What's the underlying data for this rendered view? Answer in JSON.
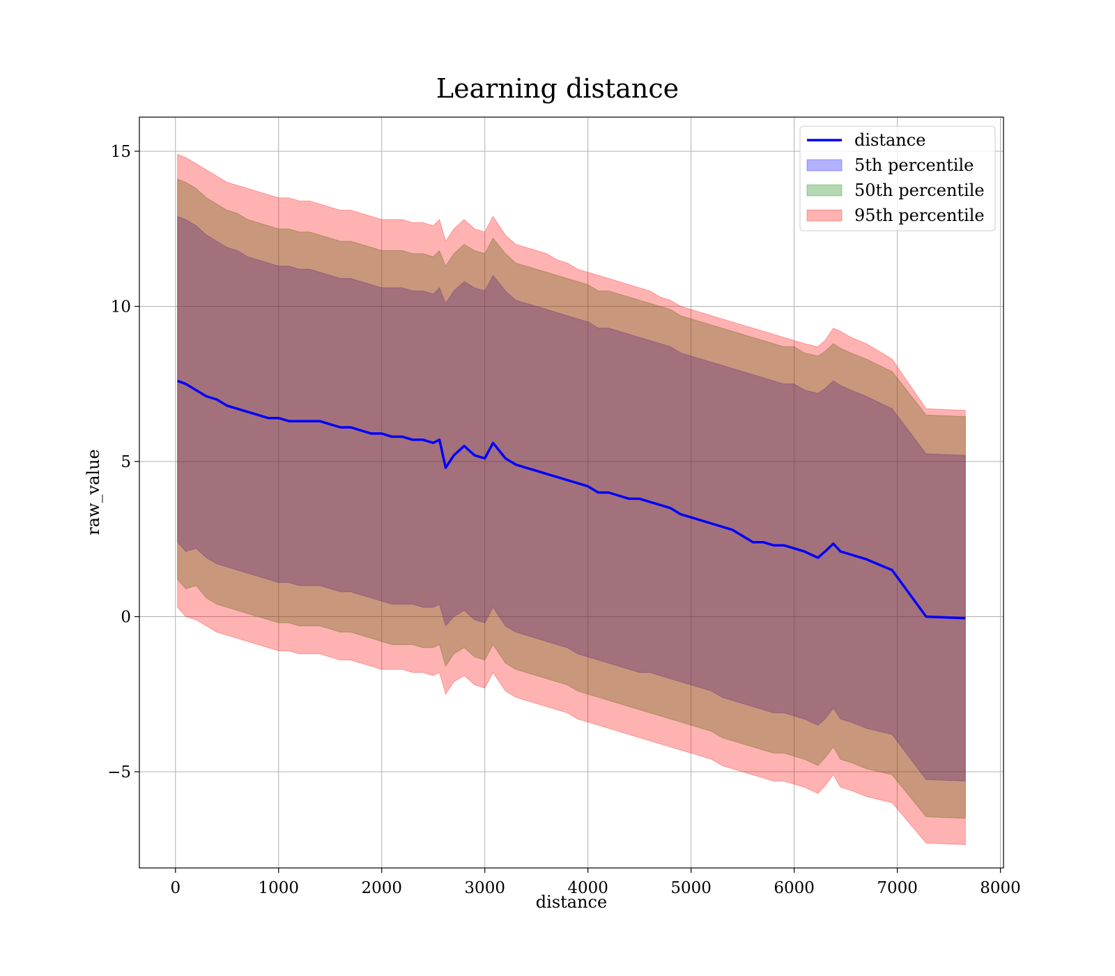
{
  "chart_data": {
    "type": "line",
    "title": "Learning distance",
    "xlabel": "distance",
    "ylabel": "raw_value",
    "xlim": [
      -350,
      8030
    ],
    "ylim": [
      -8.1,
      16.1
    ],
    "xticks": [
      0,
      1000,
      2000,
      3000,
      4000,
      5000,
      6000,
      7000,
      8000
    ],
    "xtick_labels": [
      "0",
      "1000",
      "2000",
      "3000",
      "4000",
      "5000",
      "6000",
      "7000",
      "8000"
    ],
    "yticks": [
      -5,
      0,
      5,
      10,
      15
    ],
    "ytick_labels": [
      "−5",
      "0",
      "5",
      "10",
      "15"
    ],
    "grid": true,
    "legend_position": "top-right",
    "legend": [
      {
        "label": "distance",
        "kind": "line",
        "color": "#0000ff"
      },
      {
        "label": "5th percentile",
        "kind": "band",
        "color": "#0000ff"
      },
      {
        "label": "50th percentile",
        "kind": "band",
        "color": "#008000"
      },
      {
        "label": "95th percentile",
        "kind": "band",
        "color": "#ff0000"
      }
    ],
    "x": [
      20,
      100,
      200,
      300,
      400,
      500,
      600,
      700,
      800,
      900,
      1000,
      1100,
      1200,
      1300,
      1400,
      1500,
      1600,
      1700,
      1800,
      1900,
      2000,
      2100,
      2200,
      2300,
      2400,
      2500,
      2560,
      2620,
      2700,
      2800,
      2900,
      3000,
      3080,
      3200,
      3300,
      3400,
      3500,
      3600,
      3700,
      3800,
      3900,
      4000,
      4100,
      4200,
      4300,
      4400,
      4500,
      4600,
      4700,
      4800,
      4900,
      5000,
      5100,
      5200,
      5300,
      5400,
      5500,
      5600,
      5700,
      5800,
      5900,
      6000,
      6100,
      6230,
      6300,
      6380,
      6450,
      6550,
      6700,
      6950,
      7280,
      7660
    ],
    "series": [
      {
        "name": "distance",
        "kind": "line",
        "color": "#0000ff",
        "values": [
          7.6,
          7.5,
          7.3,
          7.1,
          7.0,
          6.8,
          6.7,
          6.6,
          6.5,
          6.4,
          6.4,
          6.3,
          6.3,
          6.3,
          6.3,
          6.2,
          6.1,
          6.1,
          6.0,
          5.9,
          5.9,
          5.8,
          5.8,
          5.7,
          5.7,
          5.6,
          5.7,
          4.8,
          5.2,
          5.5,
          5.2,
          5.1,
          5.6,
          5.1,
          4.9,
          4.8,
          4.7,
          4.6,
          4.5,
          4.4,
          4.3,
          4.2,
          4.0,
          4.0,
          3.9,
          3.8,
          3.8,
          3.7,
          3.6,
          3.5,
          3.3,
          3.2,
          3.1,
          3.0,
          2.9,
          2.8,
          2.6,
          2.4,
          2.4,
          2.3,
          2.3,
          2.2,
          2.1,
          1.9,
          2.1,
          2.35,
          2.1,
          2.0,
          1.85,
          1.5,
          0.0,
          -0.05
        ]
      },
      {
        "name": "5th percentile",
        "kind": "band",
        "color": "#0000ff",
        "lower": [
          2.4,
          2.1,
          2.2,
          1.9,
          1.7,
          1.6,
          1.5,
          1.4,
          1.3,
          1.2,
          1.1,
          1.1,
          1.0,
          1.0,
          1.0,
          0.9,
          0.8,
          0.8,
          0.7,
          0.6,
          0.5,
          0.4,
          0.4,
          0.4,
          0.3,
          0.3,
          0.4,
          -0.3,
          0.0,
          0.2,
          -0.1,
          -0.2,
          0.3,
          -0.3,
          -0.5,
          -0.6,
          -0.7,
          -0.8,
          -0.9,
          -1.0,
          -1.2,
          -1.3,
          -1.4,
          -1.5,
          -1.6,
          -1.7,
          -1.8,
          -1.8,
          -1.9,
          -2.0,
          -2.1,
          -2.2,
          -2.3,
          -2.4,
          -2.6,
          -2.7,
          -2.8,
          -2.9,
          -3.0,
          -3.1,
          -3.1,
          -3.2,
          -3.3,
          -3.5,
          -3.3,
          -2.95,
          -3.3,
          -3.4,
          -3.6,
          -3.8,
          -5.25,
          -5.3
        ],
        "upper": [
          12.9,
          12.8,
          12.6,
          12.3,
          12.1,
          11.9,
          11.8,
          11.6,
          11.5,
          11.4,
          11.3,
          11.3,
          11.2,
          11.2,
          11.1,
          11.0,
          10.9,
          10.9,
          10.8,
          10.7,
          10.6,
          10.6,
          10.6,
          10.5,
          10.5,
          10.4,
          10.6,
          10.1,
          10.5,
          10.8,
          10.6,
          10.5,
          11.0,
          10.5,
          10.2,
          10.1,
          10.0,
          9.9,
          9.8,
          9.7,
          9.6,
          9.5,
          9.3,
          9.3,
          9.2,
          9.1,
          9.0,
          8.9,
          8.8,
          8.7,
          8.5,
          8.4,
          8.3,
          8.2,
          8.1,
          8.0,
          7.9,
          7.8,
          7.7,
          7.6,
          7.5,
          7.5,
          7.3,
          7.2,
          7.35,
          7.6,
          7.45,
          7.3,
          7.1,
          6.7,
          5.25,
          5.2
        ]
      },
      {
        "name": "50th percentile",
        "kind": "band",
        "color": "#008000",
        "lower": [
          1.2,
          0.9,
          1.0,
          0.6,
          0.4,
          0.3,
          0.2,
          0.1,
          0.0,
          -0.1,
          -0.2,
          -0.2,
          -0.3,
          -0.3,
          -0.3,
          -0.4,
          -0.5,
          -0.5,
          -0.6,
          -0.7,
          -0.8,
          -0.9,
          -0.9,
          -0.9,
          -1.0,
          -1.0,
          -0.9,
          -1.6,
          -1.2,
          -1.0,
          -1.3,
          -1.4,
          -0.9,
          -1.5,
          -1.7,
          -1.8,
          -1.9,
          -2.0,
          -2.1,
          -2.2,
          -2.4,
          -2.5,
          -2.6,
          -2.7,
          -2.8,
          -2.9,
          -3.0,
          -3.1,
          -3.2,
          -3.3,
          -3.4,
          -3.5,
          -3.6,
          -3.7,
          -3.9,
          -4.0,
          -4.1,
          -4.2,
          -4.3,
          -4.4,
          -4.4,
          -4.5,
          -4.6,
          -4.8,
          -4.55,
          -4.2,
          -4.6,
          -4.7,
          -4.9,
          -5.1,
          -6.45,
          -6.5
        ],
        "upper": [
          14.1,
          14.0,
          13.8,
          13.5,
          13.3,
          13.1,
          13.0,
          12.8,
          12.7,
          12.6,
          12.5,
          12.5,
          12.4,
          12.4,
          12.3,
          12.2,
          12.1,
          12.1,
          12.0,
          11.9,
          11.8,
          11.8,
          11.8,
          11.7,
          11.7,
          11.6,
          11.8,
          11.3,
          11.7,
          12.0,
          11.8,
          11.7,
          12.2,
          11.7,
          11.4,
          11.3,
          11.2,
          11.1,
          11.0,
          10.9,
          10.8,
          10.7,
          10.5,
          10.5,
          10.4,
          10.3,
          10.2,
          10.1,
          10.0,
          9.9,
          9.7,
          9.6,
          9.5,
          9.4,
          9.3,
          9.2,
          9.1,
          9.0,
          8.9,
          8.8,
          8.7,
          8.7,
          8.5,
          8.4,
          8.55,
          8.8,
          8.65,
          8.5,
          8.3,
          7.9,
          6.5,
          6.45
        ]
      },
      {
        "name": "95th percentile",
        "kind": "band",
        "color": "#ff0000",
        "lower": [
          0.3,
          0.0,
          -0.1,
          -0.3,
          -0.5,
          -0.6,
          -0.7,
          -0.8,
          -0.9,
          -1.0,
          -1.1,
          -1.1,
          -1.2,
          -1.2,
          -1.2,
          -1.3,
          -1.4,
          -1.4,
          -1.5,
          -1.6,
          -1.7,
          -1.7,
          -1.7,
          -1.8,
          -1.8,
          -1.9,
          -1.8,
          -2.5,
          -2.1,
          -1.9,
          -2.2,
          -2.3,
          -1.8,
          -2.4,
          -2.6,
          -2.7,
          -2.8,
          -2.9,
          -3.0,
          -3.1,
          -3.3,
          -3.4,
          -3.5,
          -3.6,
          -3.7,
          -3.8,
          -3.9,
          -4.0,
          -4.1,
          -4.2,
          -4.3,
          -4.4,
          -4.5,
          -4.6,
          -4.8,
          -4.9,
          -5.0,
          -5.1,
          -5.2,
          -5.3,
          -5.3,
          -5.4,
          -5.5,
          -5.7,
          -5.45,
          -5.1,
          -5.5,
          -5.6,
          -5.8,
          -6.0,
          -7.3,
          -7.35
        ],
        "upper": [
          14.9,
          14.8,
          14.6,
          14.4,
          14.2,
          14.0,
          13.9,
          13.8,
          13.7,
          13.6,
          13.5,
          13.5,
          13.4,
          13.4,
          13.3,
          13.2,
          13.1,
          13.1,
          13.0,
          12.9,
          12.8,
          12.8,
          12.8,
          12.7,
          12.7,
          12.6,
          12.8,
          12.1,
          12.5,
          12.8,
          12.5,
          12.4,
          12.9,
          12.3,
          12.0,
          11.9,
          11.8,
          11.7,
          11.5,
          11.4,
          11.2,
          11.1,
          11.0,
          10.9,
          10.8,
          10.7,
          10.6,
          10.5,
          10.3,
          10.2,
          10.0,
          9.9,
          9.8,
          9.7,
          9.6,
          9.5,
          9.4,
          9.3,
          9.2,
          9.1,
          9.0,
          8.9,
          8.8,
          8.7,
          8.9,
          9.3,
          9.2,
          9.0,
          8.8,
          8.3,
          6.7,
          6.65
        ]
      }
    ]
  }
}
